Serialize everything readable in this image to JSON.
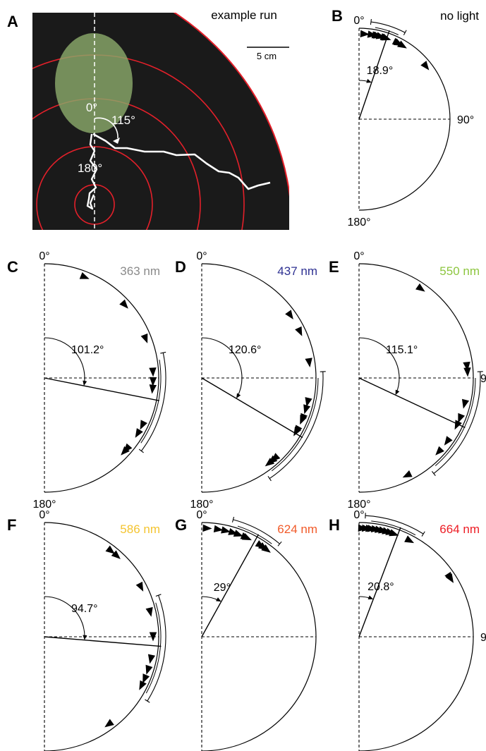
{
  "panel_a": {
    "letter": "A",
    "title": "example run",
    "scale_label": "5 cm",
    "angle_0": "0°",
    "angle_115": "115°",
    "angle_180": "180°"
  },
  "panels": [
    {
      "letter": "B",
      "label": "no light",
      "color": "#000000",
      "mean_angle_label": "18.9°",
      "mean_deg": 18.9,
      "ci": [
        7,
        28
      ],
      "arrows_deg": [
        4,
        9,
        12,
        13,
        15,
        18,
        19,
        27,
        28,
        31,
        52
      ],
      "show_90": true
    },
    {
      "letter": "C",
      "label": "363 nm",
      "color": "#8a8a8a",
      "mean_angle_label": "101.2°",
      "mean_deg": 101.2,
      "ci": [
        78,
        127
      ],
      "arrows_deg": [
        22,
        48,
        69,
        87,
        92,
        96,
        116,
        121,
        131,
        133
      ],
      "show_90": false
    },
    {
      "letter": "D",
      "label": "437 nm",
      "color": "#2e3192",
      "mean_angle_label": "120.6°",
      "mean_deg": 120.6,
      "ci": [
        87,
        146
      ],
      "arrows_deg": [
        55,
        65,
        82,
        103,
        107,
        112,
        113,
        119,
        120,
        138,
        140,
        142
      ],
      "show_90": false
    },
    {
      "letter": "E",
      "label": "550 nm",
      "color": "#8dc63f",
      "mean_angle_label": "115.1°",
      "mean_deg": 115.1,
      "ci": [
        87,
        142
      ],
      "arrows_deg": [
        35,
        84,
        87,
        104,
        112,
        116,
        126,
        133,
        154
      ],
      "show_90": true
    },
    {
      "letter": "F",
      "label": "586 nm",
      "color": "#f4c430",
      "mean_angle_label": "94.7°",
      "mean_deg": 94.7,
      "ci": [
        70,
        122
      ],
      "arrows_deg": [
        38,
        42,
        63,
        77,
        90,
        102,
        108,
        113,
        117,
        144
      ],
      "show_90": false
    },
    {
      "letter": "G",
      "label": "624 nm",
      "color": "#f15a29",
      "mean_angle_label": "29°",
      "mean_deg": 29,
      "ci": [
        15,
        40
      ],
      "arrows_deg": [
        3,
        9,
        13,
        17,
        20,
        24,
        25,
        33,
        35,
        37
      ],
      "show_90": false
    },
    {
      "letter": "H",
      "label": "664 nm",
      "color": "#ed1c24",
      "mean_angle_label": "20.8°",
      "mean_deg": 20.8,
      "ci": [
        3,
        32
      ],
      "arrows_deg": [
        2,
        4,
        6,
        7,
        9,
        11,
        13,
        15,
        17,
        19,
        28,
        57,
        58
      ],
      "show_90": true
    }
  ],
  "polar_labels": {
    "top": "0°",
    "right": "90°",
    "bottom": "180°"
  }
}
